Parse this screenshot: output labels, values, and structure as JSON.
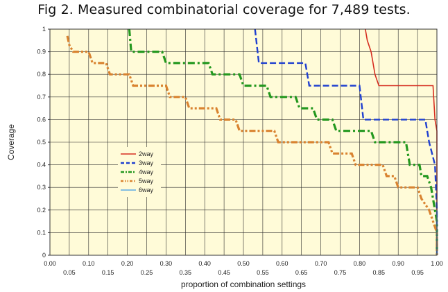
{
  "figure": {
    "title": "Fig 2. Measured combinatorial coverage for 7,489 tests."
  },
  "chart_data": {
    "type": "line",
    "title": "Fig 2. Measured combinatorial coverage for 7,489 tests.",
    "xlabel": "proportion of combination settings",
    "ylabel": "Coverage",
    "xlim": [
      0,
      1
    ],
    "ylim": [
      0,
      1
    ],
    "grid": true,
    "legend_position": "center-left",
    "background_color": "#fffbd8",
    "x_ticks_upper": [
      "0.00",
      "0.10",
      "0.20",
      "0.30",
      "0.40",
      "0.50",
      "0.60",
      "0.70",
      "0.80",
      "0.90",
      "1.00"
    ],
    "x_ticks_lower": [
      "0.05",
      "0.15",
      "0.25",
      "0.35",
      "0.45",
      "0.55",
      "0.65",
      "0.75",
      "0.85",
      "0.95"
    ],
    "y_ticks": [
      "0",
      "0.1",
      "0.2",
      "0.3",
      "0.4",
      "0.5",
      "0.6",
      "0.7",
      "0.8",
      "0.9",
      "1"
    ],
    "series": [
      {
        "name": "2way",
        "color": "#d62d20",
        "dash": "solid",
        "points": [
          [
            0.815,
            1.0
          ],
          [
            0.82,
            0.95
          ],
          [
            0.83,
            0.9
          ],
          [
            0.84,
            0.8
          ],
          [
            0.85,
            0.75
          ],
          [
            0.99,
            0.75
          ],
          [
            0.995,
            0.6
          ],
          [
            1.0,
            0.55
          ],
          [
            1.0,
            0.0
          ]
        ]
      },
      {
        "name": "3way",
        "color": "#1f3fd0",
        "dash": "dash",
        "points": [
          [
            0.53,
            1.0
          ],
          [
            0.54,
            0.85
          ],
          [
            0.66,
            0.85
          ],
          [
            0.67,
            0.75
          ],
          [
            0.8,
            0.75
          ],
          [
            0.81,
            0.6
          ],
          [
            0.97,
            0.6
          ],
          [
            0.98,
            0.5
          ],
          [
            0.995,
            0.4
          ],
          [
            1.0,
            0.2
          ],
          [
            1.0,
            0.0
          ]
        ]
      },
      {
        "name": "4way",
        "color": "#24981f",
        "dash": "dashdot",
        "points": [
          [
            0.205,
            1.0
          ],
          [
            0.21,
            0.9
          ],
          [
            0.29,
            0.9
          ],
          [
            0.3,
            0.85
          ],
          [
            0.41,
            0.85
          ],
          [
            0.42,
            0.8
          ],
          [
            0.49,
            0.8
          ],
          [
            0.5,
            0.75
          ],
          [
            0.56,
            0.75
          ],
          [
            0.57,
            0.7
          ],
          [
            0.635,
            0.7
          ],
          [
            0.645,
            0.65
          ],
          [
            0.68,
            0.65
          ],
          [
            0.69,
            0.6
          ],
          [
            0.73,
            0.6
          ],
          [
            0.74,
            0.55
          ],
          [
            0.83,
            0.55
          ],
          [
            0.84,
            0.5
          ],
          [
            0.92,
            0.5
          ],
          [
            0.93,
            0.4
          ],
          [
            0.955,
            0.4
          ],
          [
            0.96,
            0.35
          ],
          [
            0.975,
            0.35
          ],
          [
            0.985,
            0.3
          ],
          [
            0.99,
            0.25
          ],
          [
            0.995,
            0.2
          ],
          [
            1.0,
            0.15
          ],
          [
            1.0,
            0.0
          ]
        ]
      },
      {
        "name": "5way",
        "color": "#d98330",
        "dash": "dashdotdot",
        "points": [
          [
            0.045,
            0.97
          ],
          [
            0.05,
            0.93
          ],
          [
            0.06,
            0.9
          ],
          [
            0.1,
            0.9
          ],
          [
            0.11,
            0.85
          ],
          [
            0.145,
            0.85
          ],
          [
            0.155,
            0.8
          ],
          [
            0.205,
            0.8
          ],
          [
            0.215,
            0.75
          ],
          [
            0.3,
            0.75
          ],
          [
            0.31,
            0.7
          ],
          [
            0.35,
            0.7
          ],
          [
            0.36,
            0.65
          ],
          [
            0.43,
            0.65
          ],
          [
            0.44,
            0.6
          ],
          [
            0.48,
            0.6
          ],
          [
            0.49,
            0.55
          ],
          [
            0.58,
            0.55
          ],
          [
            0.59,
            0.5
          ],
          [
            0.72,
            0.5
          ],
          [
            0.73,
            0.45
          ],
          [
            0.78,
            0.45
          ],
          [
            0.79,
            0.4
          ],
          [
            0.86,
            0.4
          ],
          [
            0.87,
            0.35
          ],
          [
            0.89,
            0.35
          ],
          [
            0.9,
            0.3
          ],
          [
            0.95,
            0.3
          ],
          [
            0.96,
            0.25
          ],
          [
            0.98,
            0.2
          ],
          [
            0.99,
            0.15
          ],
          [
            1.0,
            0.1
          ],
          [
            1.0,
            0.0
          ]
        ]
      },
      {
        "name": "6way",
        "color": "#5aa9e6",
        "dash": "solid",
        "points": [
          [
            1.0,
            0.2
          ],
          [
            1.0,
            0.0
          ]
        ]
      }
    ]
  }
}
